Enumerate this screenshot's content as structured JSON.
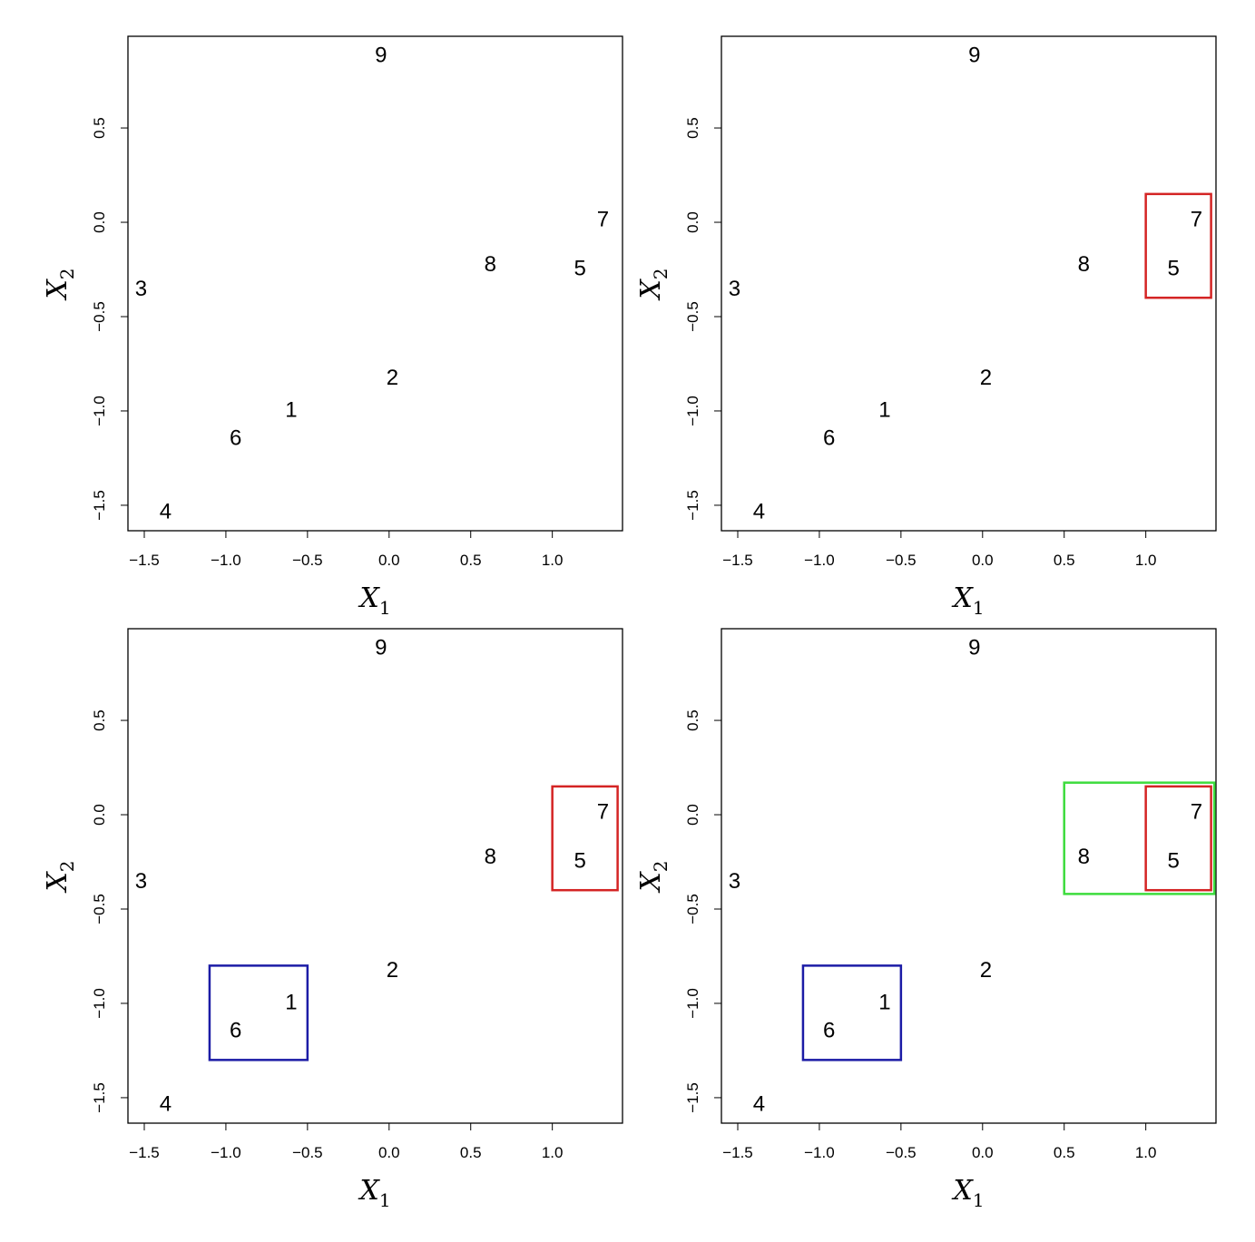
{
  "chart_data": [
    {
      "type": "scatter",
      "xlabel": "X",
      "xlabel_sub": "1",
      "ylabel": "X",
      "ylabel_sub": "2",
      "labels": [
        "1",
        "2",
        "3",
        "4",
        "5",
        "6",
        "7",
        "8",
        "9"
      ],
      "x": [
        -0.6,
        0.02,
        -1.52,
        -1.37,
        1.17,
        -0.94,
        1.31,
        0.62,
        -0.05
      ],
      "y": [
        -1.0,
        -0.83,
        -0.36,
        -1.54,
        -0.25,
        -1.15,
        0.01,
        -0.23,
        0.88
      ],
      "xlim": [
        -1.6,
        1.43
      ],
      "ylim": [
        -1.635,
        0.986
      ],
      "xticks": [
        {
          "value": -1.5,
          "label": "−1.5"
        },
        {
          "value": -1.0,
          "label": "−1.0"
        },
        {
          "value": -0.5,
          "label": "−0.5"
        },
        {
          "value": 0,
          "label": "0.0"
        },
        0.5,
        {
          "value": 1.0,
          "label": "1.0"
        }
      ],
      "yticks": [
        {
          "value": -1.5,
          "label": "−1.5"
        },
        {
          "value": -1.0,
          "label": "−1.0"
        },
        {
          "value": -0.5,
          "label": "−0.5"
        },
        {
          "value": 0,
          "label": "0.0"
        },
        0.5
      ],
      "boxes": []
    },
    {
      "type": "scatter",
      "xlabel": "X",
      "xlabel_sub": "1",
      "ylabel": "X",
      "ylabel_sub": "2",
      "labels": [
        "1",
        "2",
        "3",
        "4",
        "5",
        "6",
        "7",
        "8",
        "9"
      ],
      "x": [
        -0.6,
        0.02,
        -1.52,
        -1.37,
        1.17,
        -0.94,
        1.31,
        0.62,
        -0.05
      ],
      "y": [
        -1.0,
        -0.83,
        -0.36,
        -1.54,
        -0.25,
        -1.15,
        0.01,
        -0.23,
        0.88
      ],
      "xlim": [
        -1.6,
        1.43
      ],
      "ylim": [
        -1.635,
        0.986
      ],
      "xticks": [
        {
          "value": -1.5,
          "label": "−1.5"
        },
        {
          "value": -1.0,
          "label": "−1.0"
        },
        {
          "value": -0.5,
          "label": "−0.5"
        },
        {
          "value": 0,
          "label": "0.0"
        },
        0.5,
        {
          "value": 1.0,
          "label": "1.0"
        }
      ],
      "yticks": [
        {
          "value": -1.5,
          "label": "−1.5"
        },
        {
          "value": -1.0,
          "label": "−1.0"
        },
        {
          "value": -0.5,
          "label": "−0.5"
        },
        {
          "value": 0,
          "label": "0.0"
        },
        0.5
      ],
      "boxes": [
        {
          "color": "#d42424",
          "x": [
            1.0,
            1.4
          ],
          "y": [
            -0.4,
            0.15
          ]
        }
      ]
    },
    {
      "type": "scatter",
      "xlabel": "X",
      "xlabel_sub": "1",
      "ylabel": "X",
      "ylabel_sub": "2",
      "labels": [
        "1",
        "2",
        "3",
        "4",
        "5",
        "6",
        "7",
        "8",
        "9"
      ],
      "x": [
        -0.6,
        0.02,
        -1.52,
        -1.37,
        1.17,
        -0.94,
        1.31,
        0.62,
        -0.05
      ],
      "y": [
        -1.0,
        -0.83,
        -0.36,
        -1.54,
        -0.25,
        -1.15,
        0.01,
        -0.23,
        0.88
      ],
      "xlim": [
        -1.6,
        1.43
      ],
      "ylim": [
        -1.635,
        0.986
      ],
      "xticks": [
        {
          "value": -1.5,
          "label": "−1.5"
        },
        {
          "value": -1.0,
          "label": "−1.0"
        },
        {
          "value": -0.5,
          "label": "−0.5"
        },
        {
          "value": 0,
          "label": "0.0"
        },
        0.5,
        {
          "value": 1.0,
          "label": "1.0"
        }
      ],
      "yticks": [
        {
          "value": -1.5,
          "label": "−1.5"
        },
        {
          "value": -1.0,
          "label": "−1.0"
        },
        {
          "value": -0.5,
          "label": "−0.5"
        },
        {
          "value": 0,
          "label": "0.0"
        },
        0.5
      ],
      "boxes": [
        {
          "color": "#d42424",
          "x": [
            1.0,
            1.4
          ],
          "y": [
            -0.4,
            0.15
          ]
        },
        {
          "color": "#1c1ca6",
          "x": [
            -1.1,
            -0.5
          ],
          "y": [
            -1.3,
            -0.8
          ]
        }
      ]
    },
    {
      "type": "scatter",
      "xlabel": "X",
      "xlabel_sub": "1",
      "ylabel": "X",
      "ylabel_sub": "2",
      "labels": [
        "1",
        "2",
        "3",
        "4",
        "5",
        "6",
        "7",
        "8",
        "9"
      ],
      "x": [
        -0.6,
        0.02,
        -1.52,
        -1.37,
        1.17,
        -0.94,
        1.31,
        0.62,
        -0.05
      ],
      "y": [
        -1.0,
        -0.83,
        -0.36,
        -1.54,
        -0.25,
        -1.15,
        0.01,
        -0.23,
        0.88
      ],
      "xlim": [
        -1.6,
        1.43
      ],
      "ylim": [
        -1.635,
        0.986
      ],
      "xticks": [
        {
          "value": -1.5,
          "label": "−1.5"
        },
        {
          "value": -1.0,
          "label": "−1.0"
        },
        {
          "value": -0.5,
          "label": "−0.5"
        },
        {
          "value": 0,
          "label": "0.0"
        },
        0.5,
        {
          "value": 1.0,
          "label": "1.0"
        }
      ],
      "yticks": [
        {
          "value": -1.5,
          "label": "−1.5"
        },
        {
          "value": -1.0,
          "label": "−1.0"
        },
        {
          "value": -0.5,
          "label": "−0.5"
        },
        {
          "value": 0,
          "label": "0.0"
        },
        0.5
      ],
      "boxes": [
        {
          "color": "#3ddc3d",
          "x": [
            0.5,
            1.42
          ],
          "y": [
            -0.42,
            0.17
          ]
        },
        {
          "color": "#d42424",
          "x": [
            1.0,
            1.4
          ],
          "y": [
            -0.4,
            0.15
          ]
        },
        {
          "color": "#1c1ca6",
          "x": [
            -1.1,
            -0.5
          ],
          "y": [
            -1.3,
            -0.8
          ]
        }
      ]
    }
  ]
}
